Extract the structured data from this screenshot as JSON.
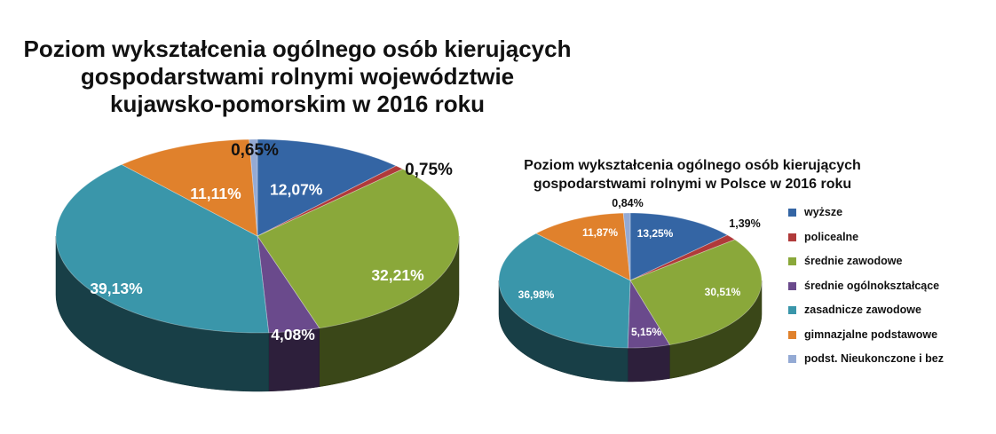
{
  "chart_data": [
    {
      "type": "pie",
      "title_lines": [
        "Poziom wykształcenia ogólnego osób kierujących",
        "gospodarstwami rolnymi województwie",
        "kujawsko-pomorskim w 2016 roku"
      ],
      "categories": [
        "wyższe",
        "policealne",
        "średnie zawodowe",
        "średnie ogólnokształcące",
        "zasadnicze zawodowe",
        "gimnazjalne podstawowe",
        "podst. Nieukonczone i bez"
      ],
      "values": [
        12.07,
        0.75,
        32.21,
        4.08,
        39.13,
        11.11,
        0.65
      ],
      "labels": [
        "12,07%",
        "0,75%",
        "32,21%",
        "4,08%",
        "39,13%",
        "11,11%",
        "0,65%"
      ],
      "style": "3d"
    },
    {
      "type": "pie",
      "title_lines": [
        "Poziom wykształcenia ogólnego osób kierujących",
        "gospodarstwami rolnymi w Polsce w 2016 roku"
      ],
      "categories": [
        "wyższe",
        "policealne",
        "średnie zawodowe",
        "średnie ogólnokształcące",
        "zasadnicze zawodowe",
        "gimnazjalne podstawowe",
        "podst. Nieukonczone i bez"
      ],
      "values": [
        13.25,
        1.39,
        30.51,
        5.15,
        36.98,
        11.87,
        0.84
      ],
      "labels": [
        "13,25%",
        "1,39%",
        "30,51%",
        "5,15%",
        "36,98%",
        "11,87%",
        "0,84%"
      ],
      "style": "3d"
    }
  ],
  "legend": {
    "items": [
      {
        "label": "wyższe",
        "color": "#3465a4"
      },
      {
        "label": "policealne",
        "color": "#b03a3a"
      },
      {
        "label": "średnie zawodowe",
        "color": "#8aa83a"
      },
      {
        "label": "średnie ogólnokształcące",
        "color": "#6a4a8c"
      },
      {
        "label": "zasadnicze zawodowe",
        "color": "#3a96aa"
      },
      {
        "label": "gimnazjalne podstawowe",
        "color": "#e0812c"
      },
      {
        "label": "podst. Nieukonczone i bez",
        "color": "#94aad4"
      }
    ],
    "placement": "right"
  },
  "colors": {
    "series": [
      "#3465a4",
      "#b03a3a",
      "#8aa83a",
      "#6a4a8c",
      "#3a96aa",
      "#e0812c",
      "#94aad4"
    ],
    "label_light": "#ffffff",
    "label_dark": "#111111"
  }
}
